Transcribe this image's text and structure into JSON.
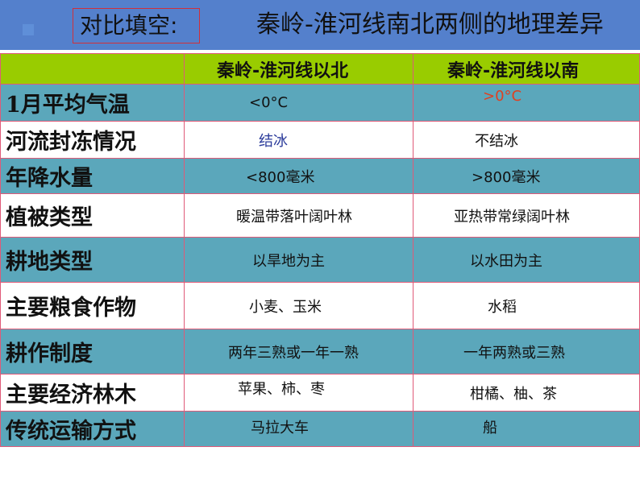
{
  "header": {
    "label": "对比填空:",
    "title": "秦岭-淮河线南北两侧的地理差异"
  },
  "table": {
    "columns": [
      "",
      "秦岭-淮河线以北",
      "秦岭-淮河线以南"
    ],
    "rows": [
      {
        "label": "1月平均气温",
        "north": "<0°C",
        "south": ">0°C"
      },
      {
        "label": "河流封冻情况",
        "north": "结冰",
        "south": "不结冰"
      },
      {
        "label": "年降水量",
        "north": "<800毫米",
        "south": ">800毫米"
      },
      {
        "label": "植被类型",
        "north": "暖温带落叶阔叶林",
        "south": "亚热带常绿阔叶林"
      },
      {
        "label": "耕地类型",
        "north": "以旱地为主",
        "south": "以水田为主"
      },
      {
        "label": "主要粮食作物",
        "north": "小麦、玉米",
        "south": "水稻"
      },
      {
        "label": "耕作制度",
        "north": "两年三熟或一年一熟",
        "south": "一年两熟或三熟"
      },
      {
        "label": "主要经济林木",
        "north": "苹果、柿、枣",
        "south": "柑橘、柚、茶"
      },
      {
        "label": "传统运输方式",
        "north": "马拉大车",
        "south": "船"
      }
    ]
  },
  "colors": {
    "banner": "#5480cc",
    "header_row": "#99cc00",
    "teal_row": "#5ba7bb",
    "border": "#e05a78",
    "highlight_red": "#e04020",
    "highlight_blue": "#2a3a9a"
  }
}
